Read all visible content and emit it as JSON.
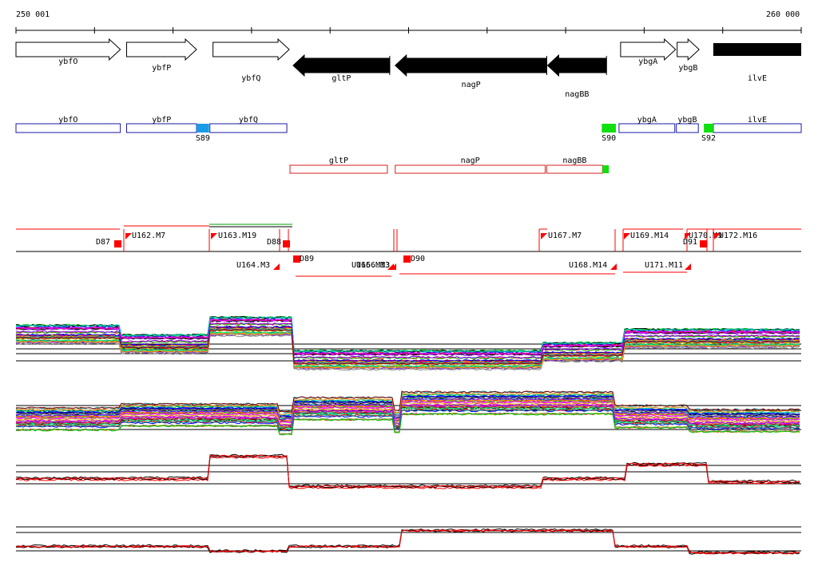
{
  "coordinates": {
    "start": "250 001",
    "end": "260 000"
  },
  "genome": {
    "start": 250001,
    "end": 260000
  },
  "colors": {
    "forward_gene": "#000000",
    "reverse_gene": "#000000",
    "forward_box": "#1a1aa6",
    "reverse_box": "#d42020",
    "marker_blue": "#1a9be6",
    "marker_green": "#10e010",
    "marker_red": "#ff0000",
    "traces_palette": [
      "#000000",
      "#ff0000",
      "#00c000",
      "#0000ff",
      "#ff00ff",
      "#00cccc",
      "#cccc00",
      "#888888",
      "#ff8800",
      "#8800ff",
      "#008888",
      "#880000",
      "#00ff88",
      "#ff0088"
    ]
  },
  "genes": [
    {
      "name": "ybfO",
      "strand": "+",
      "start": 250001,
      "end": 251330
    },
    {
      "name": "ybfP",
      "strand": "+",
      "start": 251410,
      "end": 252300
    },
    {
      "name": "ybfQ",
      "strand": "+",
      "start": 252510,
      "end": 253480
    },
    {
      "name": "gltP",
      "strand": "-",
      "start": 253530,
      "end": 254760
    },
    {
      "name": "nagP",
      "strand": "-",
      "start": 254830,
      "end": 256760
    },
    {
      "name": "nagBB",
      "strand": "-",
      "start": 256770,
      "end": 257520
    },
    {
      "name": "ybgA",
      "strand": "+",
      "start": 257700,
      "end": 258400
    },
    {
      "name": "ybgB",
      "strand": "+",
      "start": 258420,
      "end": 258700
    },
    {
      "name": "ilvE",
      "strand": "+",
      "start": 258880,
      "end": 260000
    }
  ],
  "forward_boxes": [
    {
      "name": "ybfO",
      "start": 250001,
      "end": 251330
    },
    {
      "name": "ybfP",
      "start": 251410,
      "end": 252300
    },
    {
      "name": "ybfQ",
      "start": 252470,
      "end": 253450
    },
    {
      "name": "ybgA",
      "start": 257680,
      "end": 258390
    },
    {
      "name": "ybgB",
      "start": 258410,
      "end": 258690
    },
    {
      "name": "ilvE",
      "start": 258880,
      "end": 260000
    }
  ],
  "reverse_boxes": [
    {
      "name": "gltP",
      "start": 253490,
      "end": 254730
    },
    {
      "name": "nagP",
      "start": 254830,
      "end": 256740
    },
    {
      "name": "nagBB",
      "start": 256760,
      "end": 257470
    }
  ],
  "site_markers": [
    {
      "label": "S89",
      "row": "forward",
      "color": "blue",
      "start": 252300,
      "end": 252460
    },
    {
      "label": "S90",
      "row": "forward",
      "color": "green",
      "start": 257460,
      "end": 257640
    },
    {
      "label": "S92",
      "row": "forward",
      "color": "green",
      "start": 258760,
      "end": 258880
    },
    {
      "label": "",
      "row": "reverse",
      "color": "green",
      "start": 257470,
      "end": 257550
    }
  ],
  "segments": {
    "upper": [
      {
        "label": "D87",
        "pos": 251250
      },
      {
        "label": "U162.M7",
        "pos": 251380
      },
      {
        "label": "U163.M19",
        "pos": 252440
      },
      {
        "label": "D88",
        "pos": 253350
      },
      {
        "label": "U167.M7",
        "pos": 256640
      },
      {
        "label": "U169.M14",
        "pos": 257650
      },
      {
        "label": "U170.M9",
        "pos": 258400
      },
      {
        "label": "D91",
        "pos": 258550
      },
      {
        "label": "U172.M16",
        "pos": 258780
      }
    ],
    "lower": [
      {
        "label": "D89",
        "pos": 253480
      },
      {
        "label": "U164.M3",
        "pos": 253250
      },
      {
        "label": "U165.M13",
        "pos": 254770
      },
      {
        "label": "U166.M3",
        "pos": 254720
      },
      {
        "label": "D90",
        "pos": 254870
      },
      {
        "label": "U168.M14",
        "pos": 257440
      },
      {
        "label": "U171.M11",
        "pos": 258400
      }
    ]
  }
}
